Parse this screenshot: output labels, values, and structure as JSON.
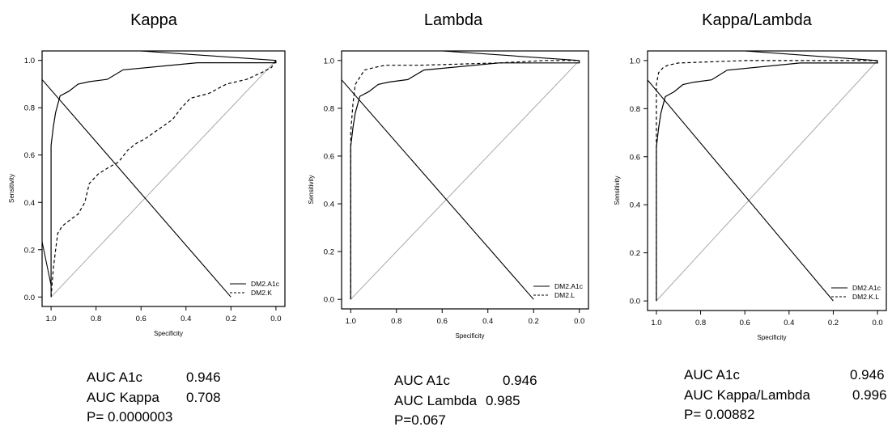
{
  "chart_data": [
    {
      "type": "line",
      "title": "Kappa",
      "xlabel": "Specificity",
      "ylabel": "Sensitivity",
      "x_reversed": true,
      "xlim": [
        1.0,
        0.0
      ],
      "ylim": [
        0.0,
        1.0
      ],
      "x_ticks": [
        "1.0",
        "0.8",
        "0.6",
        "0.4",
        "0.2",
        "0.0"
      ],
      "y_ticks": [
        "0.0",
        "0.2",
        "0.4",
        "0.6",
        "0.8",
        "1.0"
      ],
      "legend_position": "bottom-right",
      "series": [
        {
          "name": "DM2.A1c",
          "style": "solid",
          "points": [
            [
              1.0,
              0.0
            ],
            [
              1.0,
              0.64
            ],
            [
              0.99,
              0.72
            ],
            [
              0.98,
              0.78
            ],
            [
              0.96,
              0.85
            ],
            [
              0.92,
              0.87
            ],
            [
              0.88,
              0.9
            ],
            [
              0.83,
              0.91
            ],
            [
              0.75,
              0.92
            ],
            [
              0.68,
              0.96
            ],
            [
              0.35,
              0.99
            ],
            [
              0.0,
              0.99
            ],
            [
              0.0,
              1.0
            ]
          ]
        },
        {
          "name": "DM2.K",
          "style": "dashed",
          "points": [
            [
              1.0,
              0.0
            ],
            [
              0.99,
              0.12
            ],
            [
              0.98,
              0.2
            ],
            [
              0.97,
              0.27
            ],
            [
              0.95,
              0.3
            ],
            [
              0.91,
              0.33
            ],
            [
              0.88,
              0.35
            ],
            [
              0.85,
              0.4
            ],
            [
              0.83,
              0.48
            ],
            [
              0.79,
              0.52
            ],
            [
              0.74,
              0.55
            ],
            [
              0.7,
              0.57
            ],
            [
              0.66,
              0.62
            ],
            [
              0.62,
              0.65
            ],
            [
              0.58,
              0.67
            ],
            [
              0.52,
              0.71
            ],
            [
              0.46,
              0.75
            ],
            [
              0.42,
              0.8
            ],
            [
              0.38,
              0.84
            ],
            [
              0.3,
              0.86
            ],
            [
              0.22,
              0.9
            ],
            [
              0.13,
              0.92
            ],
            [
              0.06,
              0.95
            ],
            [
              0.02,
              0.97
            ],
            [
              0.0,
              1.0
            ]
          ]
        }
      ],
      "extra_lines": [
        {
          "style": "solid",
          "points": [
            [
              1.05,
              0.93
            ],
            [
              0.2,
              0.0
            ]
          ]
        },
        {
          "style": "solid",
          "points": [
            [
              1.05,
              0.28
            ],
            [
              1.0,
              0.05
            ]
          ]
        },
        {
          "style": "solid",
          "points": [
            [
              0.75,
              1.05
            ],
            [
              0.0,
              1.0
            ]
          ]
        }
      ],
      "stats": [
        {
          "label": "AUC A1c",
          "value": "0.946"
        },
        {
          "label": "AUC Kappa",
          "value": "0.708"
        },
        {
          "label": "P= 0.0000003",
          "value": ""
        }
      ]
    },
    {
      "type": "line",
      "title": "Lambda",
      "xlabel": "Specificity",
      "ylabel": "Sensitivity",
      "x_reversed": true,
      "xlim": [
        1.0,
        0.0
      ],
      "ylim": [
        0.0,
        1.0
      ],
      "x_ticks": [
        "1.0",
        "0.8",
        "0.6",
        "0.4",
        "0.2",
        "0.0"
      ],
      "y_ticks": [
        "0.0",
        "0.2",
        "0.4",
        "0.6",
        "0.8",
        "1.0"
      ],
      "legend_position": "bottom-right",
      "series": [
        {
          "name": "DM2.A1c",
          "style": "solid",
          "points": [
            [
              1.0,
              0.0
            ],
            [
              1.0,
              0.64
            ],
            [
              0.99,
              0.72
            ],
            [
              0.98,
              0.78
            ],
            [
              0.96,
              0.85
            ],
            [
              0.92,
              0.87
            ],
            [
              0.88,
              0.9
            ],
            [
              0.83,
              0.91
            ],
            [
              0.75,
              0.92
            ],
            [
              0.68,
              0.96
            ],
            [
              0.35,
              0.99
            ],
            [
              0.0,
              0.99
            ],
            [
              0.0,
              1.0
            ]
          ]
        },
        {
          "name": "DM2.L",
          "style": "dashed",
          "points": [
            [
              1.0,
              0.0
            ],
            [
              1.0,
              0.7
            ],
            [
              0.99,
              0.82
            ],
            [
              0.98,
              0.9
            ],
            [
              0.96,
              0.93
            ],
            [
              0.94,
              0.96
            ],
            [
              0.9,
              0.97
            ],
            [
              0.85,
              0.98
            ],
            [
              0.7,
              0.98
            ],
            [
              0.35,
              0.99
            ],
            [
              0.15,
              1.0
            ],
            [
              0.0,
              1.0
            ]
          ]
        }
      ],
      "extra_lines": [
        {
          "style": "solid",
          "points": [
            [
              1.05,
              0.93
            ],
            [
              0.2,
              0.0
            ]
          ]
        },
        {
          "style": "solid",
          "points": [
            [
              0.75,
              1.05
            ],
            [
              0.0,
              1.0
            ]
          ]
        }
      ],
      "stats": [
        {
          "label": "AUC A1c",
          "value": "0.946"
        },
        {
          "label": "AUC Lambda",
          "value": "0.985"
        },
        {
          "label": "P=0.067",
          "value": ""
        }
      ]
    },
    {
      "type": "line",
      "title": "Kappa/Lambda",
      "xlabel": "Specificity",
      "ylabel": "Sensitivity",
      "x_reversed": true,
      "xlim": [
        1.0,
        0.0
      ],
      "ylim": [
        0.0,
        1.0
      ],
      "x_ticks": [
        "1.0",
        "0.8",
        "0.6",
        "0.4",
        "0.2",
        "0.0"
      ],
      "y_ticks": [
        "0.0",
        "0.2",
        "0.4",
        "0.6",
        "0.8",
        "1.0"
      ],
      "legend_position": "bottom-right",
      "series": [
        {
          "name": "DM2.A1c",
          "style": "solid",
          "points": [
            [
              1.0,
              0.0
            ],
            [
              1.0,
              0.64
            ],
            [
              0.99,
              0.72
            ],
            [
              0.98,
              0.78
            ],
            [
              0.96,
              0.85
            ],
            [
              0.92,
              0.87
            ],
            [
              0.88,
              0.9
            ],
            [
              0.83,
              0.91
            ],
            [
              0.75,
              0.92
            ],
            [
              0.68,
              0.96
            ],
            [
              0.35,
              0.99
            ],
            [
              0.0,
              0.99
            ],
            [
              0.0,
              1.0
            ]
          ]
        },
        {
          "name": "DM2.K.L",
          "style": "dashed",
          "points": [
            [
              1.0,
              0.0
            ],
            [
              1.0,
              0.9
            ],
            [
              0.99,
              0.95
            ],
            [
              0.97,
              0.97
            ],
            [
              0.95,
              0.98
            ],
            [
              0.9,
              0.99
            ],
            [
              0.6,
              1.0
            ],
            [
              0.0,
              1.0
            ]
          ]
        }
      ],
      "extra_lines": [
        {
          "style": "solid",
          "points": [
            [
              1.05,
              0.93
            ],
            [
              0.2,
              0.0
            ]
          ]
        },
        {
          "style": "solid",
          "points": [
            [
              0.75,
              1.05
            ],
            [
              0.0,
              1.0
            ]
          ]
        }
      ],
      "stats": [
        {
          "label": "AUC A1c",
          "value": "0.946"
        },
        {
          "label": "AUC Kappa/Lambda",
          "value": "0.996"
        },
        {
          "label": "P= 0.00882",
          "value": ""
        }
      ]
    }
  ]
}
